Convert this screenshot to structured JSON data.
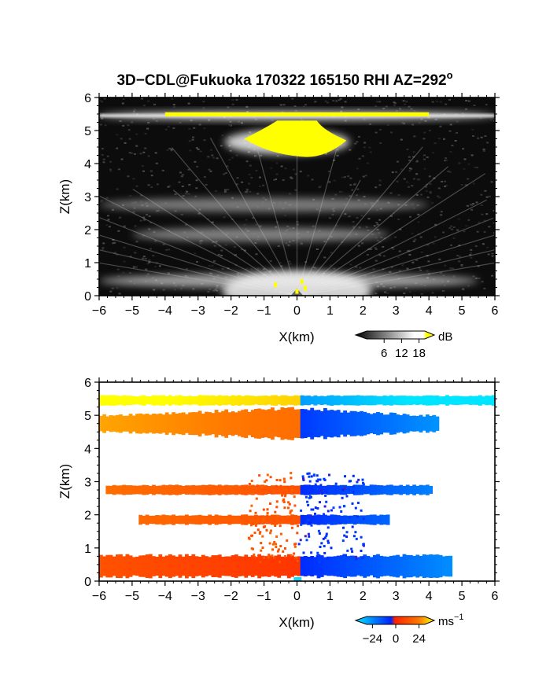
{
  "title": "3D−CDL@Fukuoka 170322 165150 RHI AZ=292",
  "title_superscript": "o",
  "chart_data": [
    {
      "type": "heatmap",
      "variable": "signal intensity",
      "xlabel": "X(km)",
      "ylabel": "Z(km)",
      "xlim": [
        -6,
        6
      ],
      "ylim": [
        0,
        6
      ],
      "xticks": [
        "−6",
        "−5",
        "−4",
        "−3",
        "−2",
        "−1",
        "0",
        "1",
        "2",
        "3",
        "4",
        "5",
        "6"
      ],
      "yticks": [
        "0",
        "1",
        "2",
        "3",
        "4",
        "5",
        "6"
      ],
      "colorbar": {
        "unit": "dB",
        "ticks": [
          "6",
          "12",
          "18"
        ],
        "range": [
          0,
          20
        ],
        "colors": [
          "#000000",
          "#ffffff",
          "#ffff00"
        ]
      },
      "layers": [
        {
          "z": 5.45,
          "x_range": [
            -6.0,
            6.0
          ],
          "peak_db": 22
        },
        {
          "z": 4.65,
          "x_range": [
            -2.2,
            1.6
          ],
          "peak_db": 22
        },
        {
          "z": 2.75,
          "x_range": [
            -6.0,
            4.0
          ],
          "peak_db": 8
        },
        {
          "z": 1.85,
          "x_range": [
            -5.0,
            2.8
          ],
          "peak_db": 9
        },
        {
          "z": 0.45,
          "x_range": [
            -6.0,
            5.5
          ],
          "peak_db": 14
        }
      ]
    },
    {
      "type": "heatmap",
      "variable": "Doppler velocity",
      "xlabel": "X(km)",
      "ylabel": "Z(km)",
      "xlim": [
        -6,
        6
      ],
      "ylim": [
        0,
        6
      ],
      "xticks": [
        "−6",
        "−5",
        "−4",
        "−3",
        "−2",
        "−1",
        "0",
        "1",
        "2",
        "3",
        "4",
        "5",
        "6"
      ],
      "yticks": [
        "0",
        "1",
        "2",
        "3",
        "4",
        "5",
        "6"
      ],
      "colorbar": {
        "unit": "ms",
        "unit_superscript": "−1",
        "ticks": [
          "−24",
          "0",
          "24"
        ],
        "range": [
          -30,
          30
        ],
        "colors": [
          "#00e5ff",
          "#0022ff",
          "#ff2200",
          "#ffff00"
        ]
      },
      "layers": [
        {
          "z": 5.45,
          "x_range": [
            -6.0,
            5.9
          ],
          "velocity_left": 26,
          "velocity_right": -20
        },
        {
          "z": 4.75,
          "x_range": [
            -6.0,
            4.2
          ],
          "velocity_left": 16,
          "velocity_right": -6
        },
        {
          "z": 2.75,
          "x_range": [
            -5.8,
            4.0
          ],
          "velocity_left": 10,
          "velocity_right": -4
        },
        {
          "z": 1.85,
          "x_range": [
            -4.8,
            2.8
          ],
          "velocity_left": 10,
          "velocity_right": -4
        },
        {
          "z": 0.45,
          "x_range": [
            -6.0,
            4.6
          ],
          "velocity_left": 4,
          "velocity_right": -4
        }
      ]
    }
  ]
}
